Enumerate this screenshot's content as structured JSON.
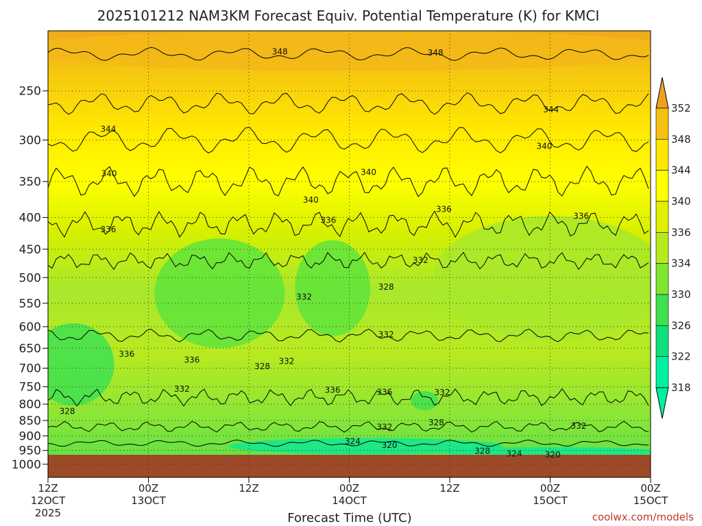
{
  "chart_data": {
    "type": "contour",
    "title": "2025101212 NAM3KM Forecast Equiv. Potential Temperature (K) for KMCI",
    "xlabel": "Forecast Time (UTC)",
    "ylabel": "",
    "credit": "coolwx.com/models",
    "y_axis": {
      "scale": "log-pressure",
      "range_hPa": [
        200,
        1050
      ],
      "inverted": true,
      "ticks": [
        "250",
        "300",
        "350",
        "400",
        "450",
        "500",
        "550",
        "600",
        "650",
        "700",
        "750",
        "800",
        "850",
        "900",
        "950",
        "1000"
      ]
    },
    "x_axis": {
      "range_hours": [
        0,
        72
      ],
      "ticks": [
        {
          "hour": 0,
          "label1": "12Z",
          "label2": "12OCT",
          "label3": "2025"
        },
        {
          "hour": 12,
          "label1": "00Z",
          "label2": "13OCT",
          "label3": ""
        },
        {
          "hour": 24,
          "label1": "12Z",
          "label2": "",
          "label3": ""
        },
        {
          "hour": 36,
          "label1": "00Z",
          "label2": "14OCT",
          "label3": ""
        },
        {
          "hour": 48,
          "label1": "12Z",
          "label2": "",
          "label3": ""
        },
        {
          "hour": 60,
          "label1": "00Z",
          "label2": "15OCT",
          "label3": ""
        }
      ]
    },
    "grid": true,
    "colorbar": {
      "levels": [
        "352",
        "348",
        "344",
        "340",
        "336",
        "334",
        "330",
        "326",
        "322",
        "318"
      ],
      "colors": [
        "#f0a020",
        "#f5c010",
        "#ffe600",
        "#ffff00",
        "#e0f000",
        "#b8ea20",
        "#7ee62c",
        "#3ee050",
        "#10e07c",
        "#00f0a0"
      ]
    },
    "contour_labels": [
      {
        "text": "348",
        "hour": 27.7,
        "p": 216
      },
      {
        "text": "348",
        "hour": 46.3,
        "p": 217
      },
      {
        "text": "344",
        "hour": 7.2,
        "p": 288
      },
      {
        "text": "344",
        "hour": 60.1,
        "p": 268
      },
      {
        "text": "340",
        "hour": 7.3,
        "p": 340
      },
      {
        "text": "340",
        "hour": 31.4,
        "p": 375
      },
      {
        "text": "340",
        "hour": 38.3,
        "p": 338
      },
      {
        "text": "340",
        "hour": 59.3,
        "p": 307
      },
      {
        "text": "336",
        "hour": 7.2,
        "p": 418
      },
      {
        "text": "336",
        "hour": 33.5,
        "p": 404
      },
      {
        "text": "336",
        "hour": 47.3,
        "p": 388
      },
      {
        "text": "336",
        "hour": 63.7,
        "p": 398
      },
      {
        "text": "332",
        "hour": 30.6,
        "p": 537
      },
      {
        "text": "328",
        "hour": 40.4,
        "p": 518
      },
      {
        "text": "332",
        "hour": 44.5,
        "p": 469
      },
      {
        "text": "332",
        "hour": 40.4,
        "p": 618
      },
      {
        "text": "336",
        "hour": 9.4,
        "p": 664
      },
      {
        "text": "336",
        "hour": 17.2,
        "p": 679
      },
      {
        "text": "328",
        "hour": 25.6,
        "p": 695
      },
      {
        "text": "332",
        "hour": 28.5,
        "p": 682
      },
      {
        "text": "332",
        "hour": 16.0,
        "p": 756
      },
      {
        "text": "336",
        "hour": 34.0,
        "p": 759
      },
      {
        "text": "336",
        "hour": 40.2,
        "p": 765
      },
      {
        "text": "332",
        "hour": 47.1,
        "p": 766
      },
      {
        "text": "328",
        "hour": 2.3,
        "p": 822
      },
      {
        "text": "328",
        "hour": 46.4,
        "p": 857
      },
      {
        "text": "332",
        "hour": 40.2,
        "p": 871
      },
      {
        "text": "332",
        "hour": 63.4,
        "p": 868
      },
      {
        "text": "324",
        "hour": 36.4,
        "p": 919
      },
      {
        "text": "320",
        "hour": 40.8,
        "p": 932
      },
      {
        "text": "328",
        "hour": 51.9,
        "p": 952
      },
      {
        "text": "324",
        "hour": 55.7,
        "p": 962
      },
      {
        "text": "320",
        "hour": 60.3,
        "p": 966
      }
    ]
  }
}
